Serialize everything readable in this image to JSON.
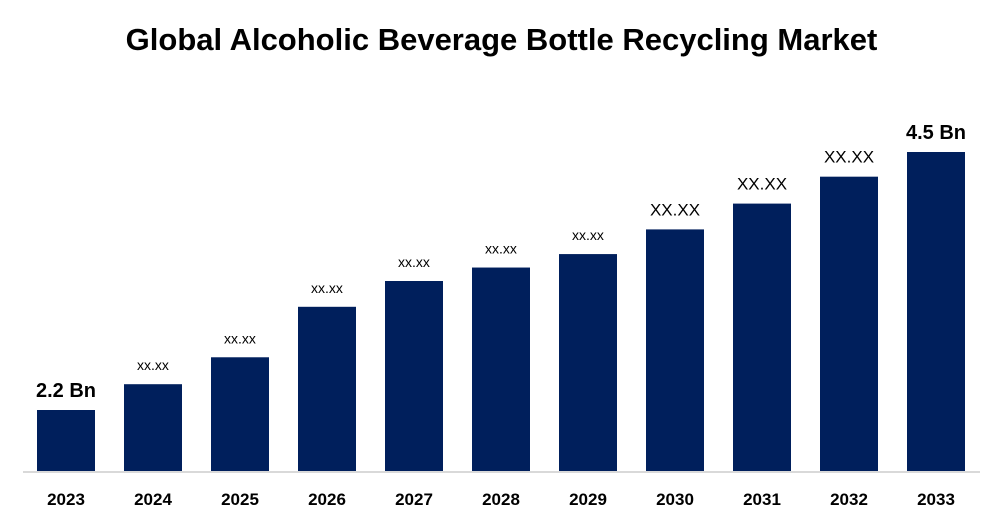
{
  "chart_data": {
    "type": "bar",
    "title": "Global Alcoholic Beverage Bottle Recycling Market",
    "categories": [
      "2023",
      "2024",
      "2025",
      "2026",
      "2027",
      "2028",
      "2029",
      "2030",
      "2031",
      "2032",
      "2033"
    ],
    "values": [
      2.2,
      2.43,
      2.67,
      3.12,
      3.35,
      3.47,
      3.59,
      3.81,
      4.04,
      4.28,
      4.5
    ],
    "data_labels": [
      "2.2 Bn",
      "xx.xx",
      "xx.xx",
      "xx.xx",
      "xx.xx",
      "xx.xx",
      "xx.xx",
      "XX.XX",
      "XX.XX",
      "XX.XX",
      "4.5 Bn"
    ],
    "xlabel": "",
    "ylabel": "",
    "ylim": [
      1.65,
      4.5
    ],
    "grid": false,
    "bar_color": "#001f5c"
  }
}
